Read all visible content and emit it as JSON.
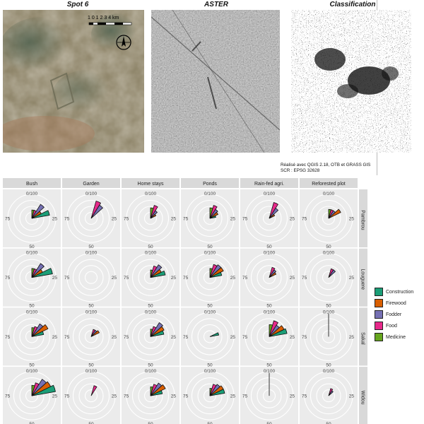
{
  "images": [
    {
      "title": "Spot 6"
    },
    {
      "title": "ASTER"
    },
    {
      "title": "Classification"
    }
  ],
  "scalebar": {
    "ticks": "1 0 1 2 3 4 km"
  },
  "credit": {
    "line1": "Réalisé avec QGIS 2.18, OTB et GRASS GIS",
    "line2": "SCR : EPSG 32628"
  },
  "colors": {
    "Construction": "#1b9e77",
    "Firewood": "#d95f02",
    "Fodder": "#7570b3",
    "Food": "#e7298a",
    "Medicine": "#66a61e",
    "strip": "#d9d9d9",
    "panel": "#ebebeb"
  },
  "chart_data": {
    "type": "polar-bar",
    "columns": [
      "Bush",
      "Garden",
      "Home stays",
      "Ponds",
      "Rain-fed agri.",
      "Reforested plot"
    ],
    "rows": [
      "Pambrou",
      "Louguere",
      "Sakal",
      "Widou"
    ],
    "categories": [
      "Medicine",
      "Food",
      "Fodder",
      "Firewood",
      "Construction"
    ],
    "tick_labels": [
      "0/100",
      "25",
      "50",
      "75"
    ],
    "rlim": [
      0,
      100
    ],
    "legend_position": "right",
    "values": {
      "Pambrou": {
        "Bush": [
          28,
          28,
          55,
          35,
          60
        ],
        "Garden": [
          0,
          60,
          52,
          0,
          0
        ],
        "Home stays": [
          35,
          45,
          30,
          20,
          0
        ],
        "Ponds": [
          35,
          45,
          35,
          30,
          20
        ],
        "Rain-fed agri.": [
          0,
          55,
          40,
          20,
          0
        ],
        "Reforested plot": [
          30,
          30,
          30,
          45,
          0
        ]
      },
      "Louguere": {
        "Bush": [
          30,
          30,
          55,
          40,
          70
        ],
        "Garden": [
          0,
          0,
          0,
          0,
          0
        ],
        "Home stays": [
          25,
          40,
          50,
          40,
          50
        ],
        "Ponds": [
          30,
          45,
          50,
          50,
          40
        ],
        "Rain-fed agri.": [
          0,
          35,
          30,
          25,
          0
        ],
        "Reforested plot": [
          0,
          30,
          30,
          0,
          0
        ]
      },
      "Sakal": {
        "Bush": [
          30,
          35,
          50,
          60,
          40
        ],
        "Garden": [
          0,
          25,
          25,
          30,
          0
        ],
        "Home stays": [
          25,
          35,
          55,
          50,
          45
        ],
        "Ponds": [
          0,
          0,
          0,
          0,
          30
        ],
        "Rain-fed agri.": [
          40,
          55,
          45,
          55,
          60
        ],
        "Reforested plot": [
          0,
          0,
          0,
          0,
          0
        ]
      },
      "Widou": {
        "Bush": [
          35,
          45,
          65,
          70,
          80
        ],
        "Garden": [
          0,
          35,
          0,
          0,
          0
        ],
        "Home stays": [
          30,
          40,
          50,
          55,
          40
        ],
        "Ponds": [
          25,
          40,
          45,
          50,
          50
        ],
        "Rain-fed agri.": [
          0,
          0,
          0,
          0,
          0
        ],
        "Reforested plot": [
          0,
          25,
          20,
          0,
          0
        ]
      }
    }
  }
}
